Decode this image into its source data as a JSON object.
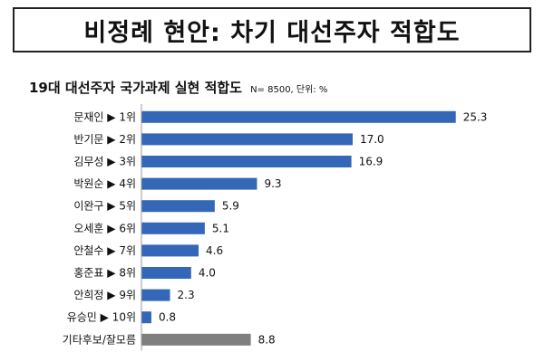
{
  "header": {
    "title": "비정례 현안: 차기 대선주자 적합도"
  },
  "chart_data": {
    "type": "bar",
    "orientation": "horizontal",
    "subtitle": "19대 대선주자 국가과제 실현 적합도",
    "note": "N= 8500, 단위: %",
    "categories": [
      "문재인 ▶ 1위",
      "반기문 ▶ 2위",
      "김무성 ▶ 3위",
      "박원순 ▶ 4위",
      "이완구 ▶ 5위",
      "오세훈 ▶ 6위",
      "안철수 ▶ 7위",
      "홍준표 ▶ 8위",
      "안희정 ▶ 9위",
      "유승민 ▶ 10위",
      "기타후보/잘모름"
    ],
    "values": [
      25.3,
      17.0,
      16.9,
      9.3,
      5.9,
      5.1,
      4.6,
      4.0,
      2.3,
      0.8,
      8.8
    ],
    "value_labels": [
      "25.3",
      "17.0",
      "16.9",
      "9.3",
      "5.9",
      "5.1",
      "4.6",
      "4.0",
      "2.3",
      "0.8",
      "8.8"
    ],
    "bar_colors": [
      "#3467b8",
      "#3467b8",
      "#3467b8",
      "#3467b8",
      "#3467b8",
      "#3467b8",
      "#3467b8",
      "#3467b8",
      "#3467b8",
      "#3467b8",
      "#7f7f7f"
    ],
    "xlim": [
      0,
      27
    ],
    "grid": false,
    "legend": "none"
  }
}
